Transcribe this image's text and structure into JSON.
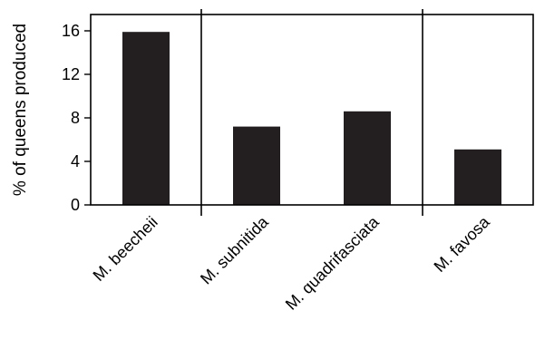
{
  "chart_data": {
    "type": "bar",
    "categories": [
      "M. beecheii",
      "M. subnitida",
      "M. quadrifasciata",
      "M. favosa"
    ],
    "values": [
      15.9,
      7.2,
      8.6,
      5.1
    ],
    "ylabel": "% of queens produced",
    "xlabel": "",
    "ylim": [
      0,
      17.5
    ],
    "yticks": [
      0,
      4,
      8,
      12,
      16
    ],
    "bar_color": "#231f20",
    "grid": false,
    "group_dividers": true
  }
}
